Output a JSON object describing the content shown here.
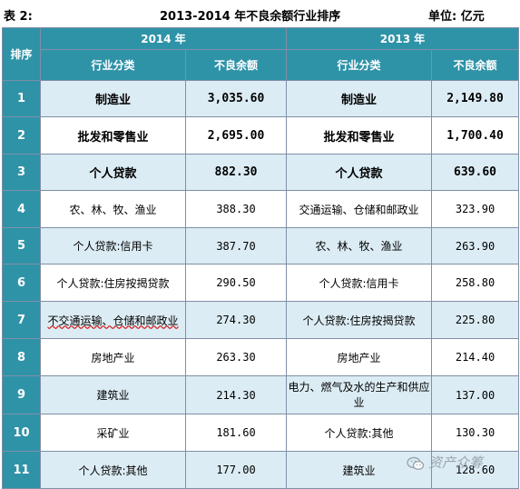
{
  "caption": {
    "label": "表 2:",
    "title": "2013-2014 年不良余额行业排序",
    "unit": "单位: 亿元"
  },
  "header": {
    "rank": "排序",
    "year_2014": "2014 年",
    "year_2013": "2013 年",
    "industry": "行业分类",
    "amount": "不良余额"
  },
  "rows": [
    {
      "rank": "1",
      "ind_2014": "制造业",
      "amt_2014": "3,035.60",
      "ind_2013": "制造业",
      "amt_2013": "2,149.80"
    },
    {
      "rank": "2",
      "ind_2014": "批发和零售业",
      "amt_2014": "2,695.00",
      "ind_2013": "批发和零售业",
      "amt_2013": "1,700.40"
    },
    {
      "rank": "3",
      "ind_2014": "个人贷款",
      "amt_2014": "882.30",
      "ind_2013": "个人贷款",
      "amt_2013": "639.60"
    },
    {
      "rank": "4",
      "ind_2014": "农、林、牧、渔业",
      "amt_2014": "388.30",
      "ind_2013": "交通运输、仓储和邮政业",
      "amt_2013": "323.90"
    },
    {
      "rank": "5",
      "ind_2014": "个人贷款:信用卡",
      "amt_2014": "387.70",
      "ind_2013": "农、林、牧、渔业",
      "amt_2013": "263.90"
    },
    {
      "rank": "6",
      "ind_2014": "个人贷款:住房按揭贷款",
      "amt_2014": "290.50",
      "ind_2013": "个人贷款:信用卡",
      "amt_2013": "258.80"
    },
    {
      "rank": "7",
      "ind_2014": "不交通运输、仓储和邮政业",
      "amt_2014": "274.30",
      "ind_2013": "个人贷款:住房按揭贷款",
      "amt_2013": "225.80"
    },
    {
      "rank": "8",
      "ind_2014": "房地产业",
      "amt_2014": "263.30",
      "ind_2013": "房地产业",
      "amt_2013": "214.40"
    },
    {
      "rank": "9",
      "ind_2014": "建筑业",
      "amt_2014": "214.30",
      "ind_2013": "电力、燃气及水的生产和供应业",
      "amt_2013": "137.00"
    },
    {
      "rank": "10",
      "ind_2014": "采矿业",
      "amt_2014": "181.60",
      "ind_2013": "个人贷款:其他",
      "amt_2013": "130.30"
    },
    {
      "rank": "11",
      "ind_2014": "个人贷款:其他",
      "amt_2014": "177.00",
      "ind_2013": "建筑业",
      "amt_2013": "128.60"
    }
  ],
  "watermark": {
    "icon": "wechat-icon",
    "text": "资产众筹"
  }
}
